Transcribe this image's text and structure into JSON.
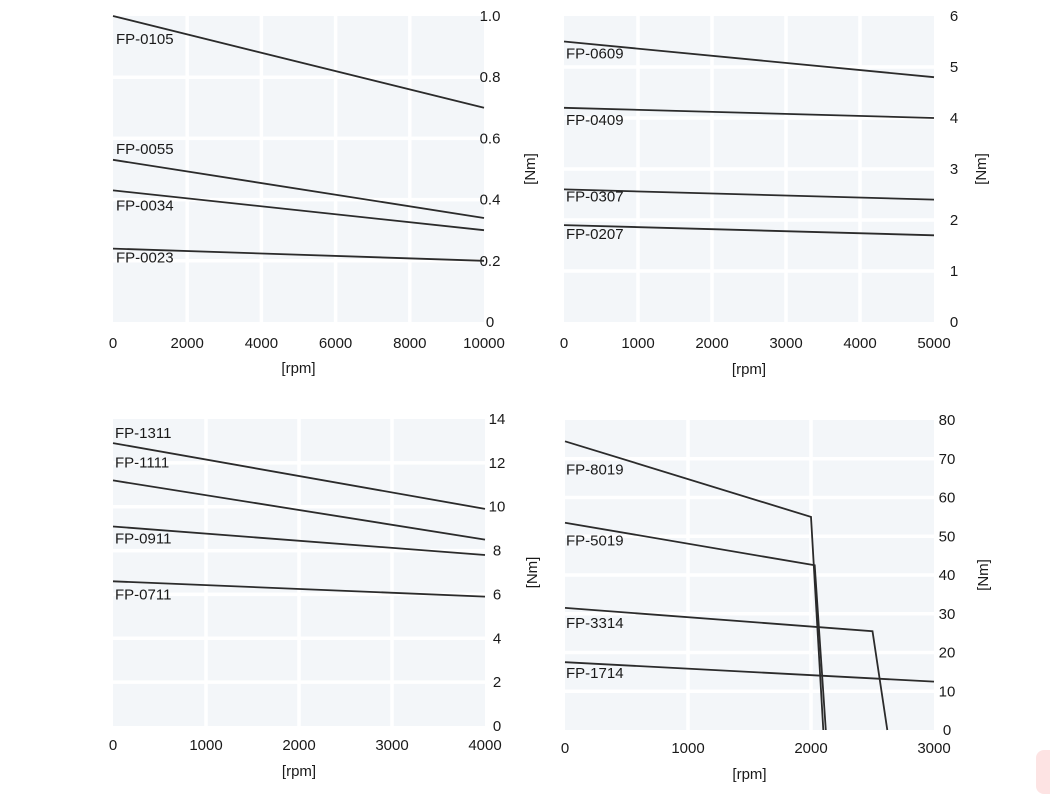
{
  "chart_data": [
    {
      "type": "line",
      "xlabel": "[rpm]",
      "ylabel": "[Nm]",
      "xlim": [
        0,
        10000
      ],
      "ylim": [
        0,
        1.0
      ],
      "xticks": [
        "0",
        "2000",
        "4000",
        "6000",
        "8000",
        "10000"
      ],
      "yticks": [
        "0",
        "0.2",
        "0.4",
        "0.6",
        "0.8",
        "1.0"
      ],
      "series": [
        {
          "name": "FP-0105",
          "x": [
            0,
            10000
          ],
          "y": [
            1.0,
            0.7
          ]
        },
        {
          "name": "FP-0055",
          "x": [
            0,
            10000
          ],
          "y": [
            0.53,
            0.34
          ]
        },
        {
          "name": "FP-0034",
          "x": [
            0,
            10000
          ],
          "y": [
            0.43,
            0.3
          ]
        },
        {
          "name": "FP-0023",
          "x": [
            0,
            10000
          ],
          "y": [
            0.24,
            0.2
          ]
        }
      ]
    },
    {
      "type": "line",
      "xlabel": "[rpm]",
      "ylabel": "[Nm]",
      "xlim": [
        0,
        5000
      ],
      "ylim": [
        0,
        6
      ],
      "xticks": [
        "0",
        "1000",
        "2000",
        "3000",
        "4000",
        "5000"
      ],
      "yticks": [
        "0",
        "1",
        "2",
        "3",
        "4",
        "5",
        "6"
      ],
      "series": [
        {
          "name": "FP-0609",
          "x": [
            0,
            5000
          ],
          "y": [
            5.5,
            4.8
          ]
        },
        {
          "name": "FP-0409",
          "x": [
            0,
            5000
          ],
          "y": [
            4.2,
            4.0
          ]
        },
        {
          "name": "FP-0307",
          "x": [
            0,
            5000
          ],
          "y": [
            2.6,
            2.4
          ]
        },
        {
          "name": "FP-0207",
          "x": [
            0,
            5000
          ],
          "y": [
            1.9,
            1.7
          ]
        }
      ]
    },
    {
      "type": "line",
      "xlabel": "[rpm]",
      "ylabel": "[Nm]",
      "xlim": [
        0,
        4000
      ],
      "ylim": [
        0,
        14
      ],
      "xticks": [
        "0",
        "1000",
        "2000",
        "3000",
        "4000"
      ],
      "yticks": [
        "0",
        "2",
        "4",
        "6",
        "8",
        "10",
        "12",
        "14"
      ],
      "series": [
        {
          "name": "FP-1311",
          "x": [
            0,
            4000
          ],
          "y": [
            12.9,
            9.9
          ]
        },
        {
          "name": "FP-1111",
          "x": [
            0,
            4000
          ],
          "y": [
            11.2,
            8.5
          ]
        },
        {
          "name": "FP-0911",
          "x": [
            0,
            4000
          ],
          "y": [
            9.1,
            7.8
          ]
        },
        {
          "name": "FP-0711",
          "x": [
            0,
            4000
          ],
          "y": [
            6.6,
            5.9
          ]
        }
      ]
    },
    {
      "type": "line",
      "xlabel": "[rpm]",
      "ylabel": "[Nm]",
      "xlim": [
        0,
        3000
      ],
      "ylim": [
        0,
        80
      ],
      "xticks": [
        "0",
        "1000",
        "2000",
        "3000"
      ],
      "yticks": [
        "0",
        "10",
        "20",
        "30",
        "40",
        "50",
        "60",
        "70",
        "80"
      ],
      "series": [
        {
          "name": "FP-8019",
          "x": [
            0,
            2000,
            2100
          ],
          "y": [
            74.5,
            55,
            0
          ]
        },
        {
          "name": "FP-5019",
          "x": [
            0,
            2030,
            2120
          ],
          "y": [
            53.5,
            42.5,
            0
          ]
        },
        {
          "name": "FP-3314",
          "x": [
            0,
            2500,
            2620
          ],
          "y": [
            31.5,
            25.5,
            0
          ]
        },
        {
          "name": "FP-1714",
          "x": [
            0,
            3000
          ],
          "y": [
            17.5,
            12.5
          ]
        }
      ]
    }
  ]
}
